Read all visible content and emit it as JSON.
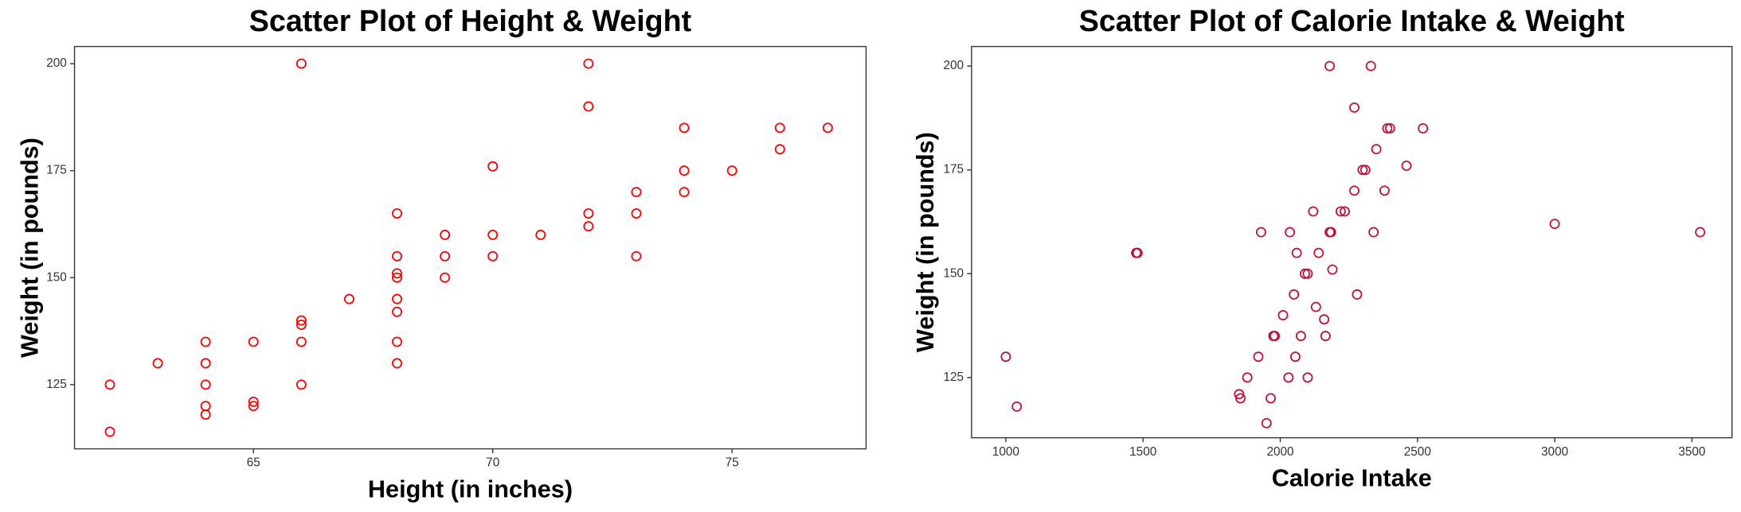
{
  "chart_data": [
    {
      "type": "scatter",
      "title": "Scatter Plot of Height & Weight",
      "x_label": "Height (in inches)",
      "y_label": "Weight (in pounds)",
      "color": "#ff0000",
      "x": [
        62,
        62,
        63,
        64,
        64,
        64,
        64,
        64,
        65,
        65,
        65,
        66,
        66,
        66,
        66,
        66,
        67,
        68,
        68,
        68,
        68,
        68,
        68,
        68,
        68,
        69,
        69,
        69,
        70,
        70,
        70,
        71,
        72,
        72,
        72,
        72,
        73,
        73,
        73,
        74,
        74,
        74,
        75,
        76,
        76,
        77
      ],
      "values": [
        125,
        114,
        130,
        135,
        130,
        125,
        120,
        118,
        135,
        121,
        120,
        200,
        140,
        139,
        135,
        125,
        145,
        165,
        155,
        151,
        150,
        145,
        142,
        135,
        130,
        160,
        155,
        150,
        176,
        160,
        155,
        160,
        200,
        190,
        165,
        162,
        170,
        165,
        155,
        185,
        175,
        170,
        175,
        185,
        180,
        185
      ],
      "xlim": [
        61.26,
        77.8
      ],
      "ylim": [
        110,
        204
      ],
      "xticks": [
        65,
        70,
        75
      ],
      "yticks": [
        125,
        150,
        175,
        200
      ]
    },
    {
      "type": "scatter",
      "title": "Scatter Plot of Calorie Intake  & Weight",
      "x_label": "Calorie Intake",
      "y_label": "Weight (in pounds)",
      "color": "#c0143c",
      "x": [
        1000,
        1040,
        1475,
        1480,
        1850,
        1855,
        1880,
        1920,
        1930,
        1950,
        1965,
        1975,
        1980,
        2010,
        2030,
        2035,
        2050,
        2055,
        2060,
        2075,
        2090,
        2100,
        2100,
        2120,
        2130,
        2140,
        2160,
        2165,
        2180,
        2185,
        2190,
        2180,
        2220,
        2235,
        2270,
        2270,
        2280,
        2300,
        2310,
        2330,
        2340,
        2350,
        2380,
        2390,
        2400,
        2460,
        2520,
        3000,
        3530
      ],
      "values": [
        130,
        118,
        155,
        155,
        121,
        120,
        125,
        130,
        160,
        114,
        120,
        135,
        135,
        140,
        125,
        160,
        145,
        130,
        155,
        135,
        150,
        150,
        125,
        165,
        142,
        155,
        139,
        135,
        160,
        160,
        151,
        200,
        165,
        165,
        170,
        190,
        145,
        175,
        175,
        200,
        160,
        180,
        170,
        185,
        185,
        176,
        185,
        162,
        160
      ],
      "xlim": [
        875,
        3646
      ],
      "ylim": [
        110.5,
        204.7
      ],
      "xticks": [
        1000,
        1500,
        2000,
        2500,
        3000,
        3500
      ],
      "yticks": [
        125,
        150,
        175,
        200
      ]
    }
  ]
}
